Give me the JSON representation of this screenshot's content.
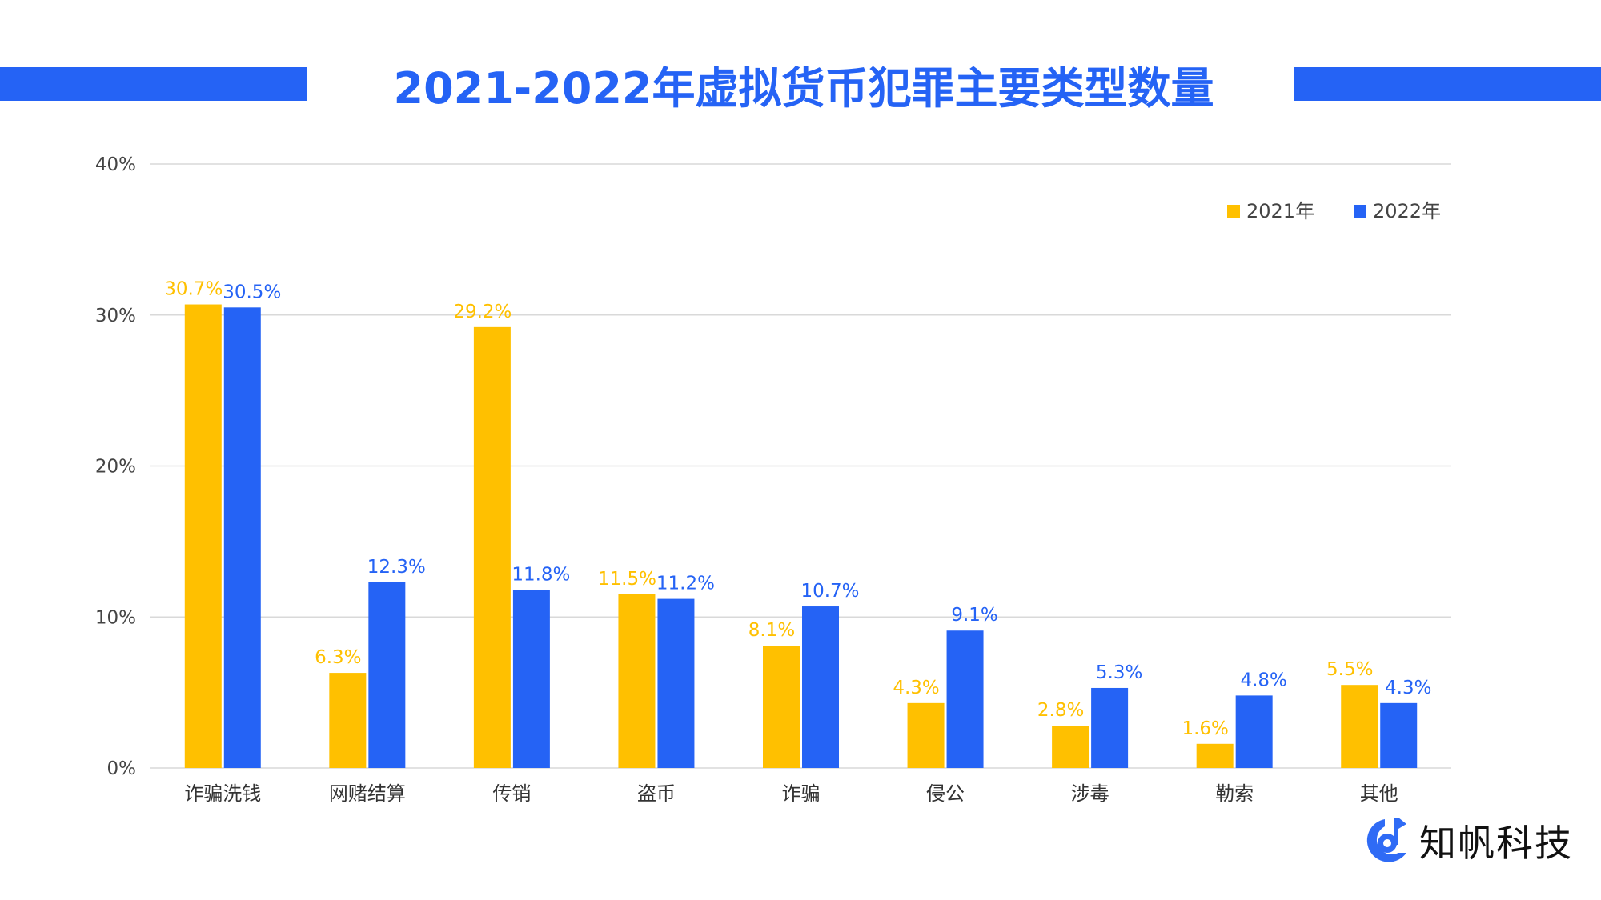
{
  "title": "2021-2022年虚拟货币犯罪主要类型数量",
  "colors": {
    "title": "#2563F5",
    "series_2021": "#FFC000",
    "series_2022": "#2563F5",
    "grid": "#D9D9D9"
  },
  "logo": {
    "text": "知帆科技",
    "icon": "zhifan-logo-icon"
  },
  "chart_data": {
    "type": "bar",
    "title": "2021-2022年虚拟货币犯罪主要类型数量",
    "xlabel": "",
    "ylabel": "",
    "ylim": [
      0,
      40
    ],
    "yticks": [
      "0%",
      "10%",
      "20%",
      "30%",
      "40%"
    ],
    "grid": true,
    "legend_position": "top-right",
    "categories": [
      "诈骗洗钱",
      "网赌结算",
      "传销",
      "盗币",
      "诈骗",
      "侵公",
      "涉毒",
      "勒索",
      "其他"
    ],
    "series": [
      {
        "name": "2021年",
        "values": [
          30.7,
          6.3,
          29.2,
          11.5,
          8.1,
          4.3,
          2.8,
          1.6,
          5.5
        ],
        "labels": [
          "30.7%",
          "6.3%",
          "29.2%",
          "11.5%",
          "8.1%",
          "4.3%",
          "2.8%",
          "1.6%",
          "5.5%"
        ]
      },
      {
        "name": "2022年",
        "values": [
          30.5,
          12.3,
          11.8,
          11.2,
          10.7,
          9.1,
          5.3,
          4.8,
          4.3
        ],
        "labels": [
          "30.5%",
          "12.3%",
          "11.8%",
          "11.2%",
          "10.7%",
          "9.1%",
          "5.3%",
          "4.8%",
          "4.3%"
        ]
      }
    ]
  }
}
